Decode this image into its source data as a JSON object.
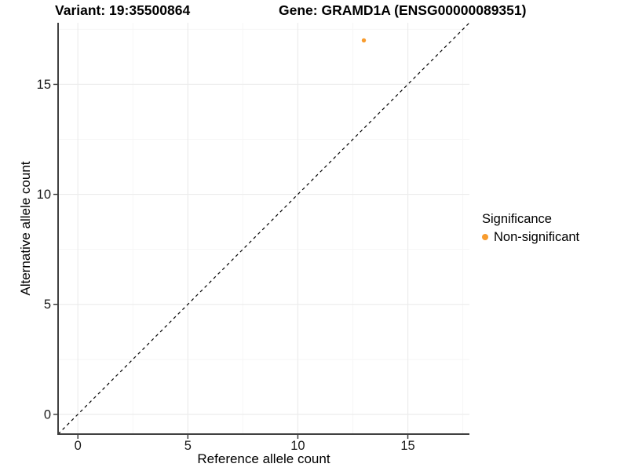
{
  "header": {
    "variant_title": "Variant: 19:35500864",
    "gene_title": "Gene: GRAMD1A (ENSG00000089351)"
  },
  "chart_data": {
    "type": "scatter",
    "title": "",
    "xlabel": "Reference allele count",
    "ylabel": "Alternative allele count",
    "xlim": [
      -0.9,
      17.8
    ],
    "ylim": [
      -0.9,
      17.8
    ],
    "xticks": [
      0,
      5,
      10,
      15
    ],
    "yticks": [
      0,
      5,
      10,
      15
    ],
    "xtick_labels": [
      "0",
      "5",
      "10",
      "15"
    ],
    "ytick_labels": [
      "0",
      "5",
      "10",
      "15"
    ],
    "grid": true,
    "grid_minor_ticks": [
      2.5,
      7.5,
      12.5,
      17.5
    ],
    "identity_line": {
      "style": "dashed",
      "from": -0.9,
      "to": 17.8,
      "color": "#000000"
    },
    "series": [
      {
        "name": "Non-significant",
        "color": "#F89C2E",
        "points": [
          {
            "x": 13,
            "y": 17
          }
        ]
      }
    ],
    "legend": {
      "title": "Significance",
      "position": "right",
      "entries": [
        {
          "label": "Non-significant",
          "color": "#F89C2E"
        }
      ]
    }
  },
  "colors": {
    "background": "#FFFFFF",
    "grid_major": "#ECECEC",
    "grid_minor": "#F6F6F6",
    "axis_line": "#404040",
    "tick": "#333333",
    "text": "#1A1A1A",
    "point": "#F89C2E"
  }
}
